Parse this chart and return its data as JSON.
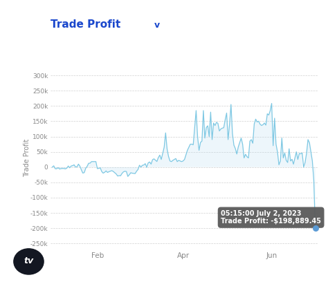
{
  "title": "Trade Profit",
  "title_arrow": "v",
  "ylabel": "Trade Profit",
  "line_color": "#7ec8e3",
  "fill_color": "#b8ddf0",
  "background_color": "#ffffff",
  "grid_color": "#d0d0d0",
  "title_color": "#1a47cc",
  "ylim": [
    -270000,
    330000
  ],
  "yticks": [
    -250000,
    -200000,
    -150000,
    -100000,
    -50000,
    0,
    50000,
    100000,
    150000,
    200000,
    250000,
    300000
  ],
  "ytick_labels": [
    "-250k",
    "-200k",
    "-150k",
    "-100k",
    "-50k",
    "0",
    "50k",
    "100k",
    "150k",
    "200k",
    "250k",
    "300k"
  ],
  "xtick_labels": [
    "Feb",
    "Apr",
    "Jun"
  ],
  "xtick_positions": [
    31,
    90,
    151
  ],
  "tooltip_text1": "05:15:00 July 2, 2023",
  "tooltip_text2": "Trade Profit: -$198,889.45",
  "tooltip_bg": "#5a5a5a",
  "tooltip_text_color": "#ffffff",
  "dot_color": "#5b9bd5",
  "tick_color": "#888888",
  "spine_color": "#e0e0e0"
}
